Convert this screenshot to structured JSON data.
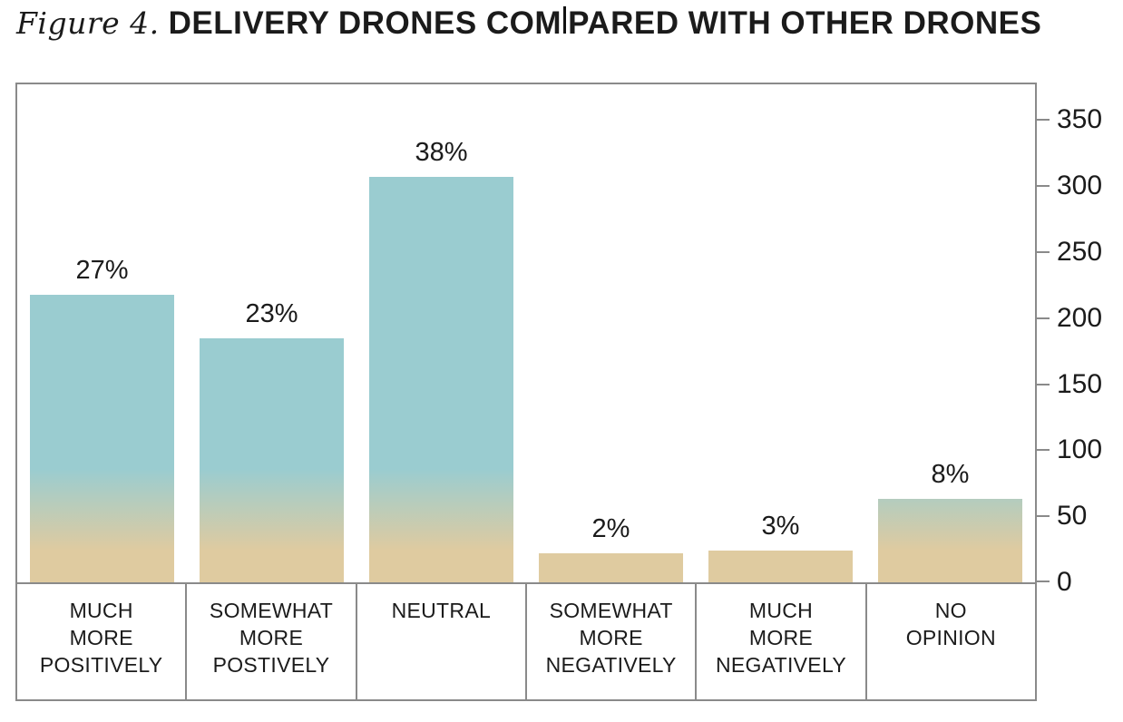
{
  "title": {
    "prefix": "Figure 4.",
    "main_before_caret": "DELIVERY DRONES COM",
    "main_after_caret": "PARED WITH OTHER DRONES",
    "full": "Figure 4. DELIVERY DRONES COMPARED WITH OTHER DRONES"
  },
  "chart_data": {
    "type": "bar",
    "title": "Figure 4. DELIVERY DRONES COMPARED WITH OTHER DRONES",
    "categories": [
      "MUCH MORE POSITIVELY",
      "SOMEWHAT MORE POSTIVELY",
      "NEUTRAL",
      "SOMEWHAT MORE NEGATIVELY",
      "MUCH MORE NEGATIVELY",
      "NO OPINION"
    ],
    "category_lines": [
      [
        "MUCH",
        "MORE",
        "POSITIVELY"
      ],
      [
        "SOMEWHAT",
        "MORE",
        "POSTIVELY"
      ],
      [
        "NEUTRAL"
      ],
      [
        "SOMEWHAT",
        "MORE",
        "NEGATIVELY"
      ],
      [
        "MUCH",
        "MORE",
        "NEGATIVELY"
      ],
      [
        "NO",
        "OPINION"
      ]
    ],
    "bar_labels": [
      "27%",
      "23%",
      "38%",
      "2%",
      "3%",
      "8%"
    ],
    "percent_values": [
      27,
      23,
      38,
      2,
      3,
      8
    ],
    "values_axis_units": [
      218,
      185,
      307,
      22,
      24,
      63
    ],
    "xlabel": "",
    "ylabel": "",
    "ylim": [
      0,
      350
    ],
    "yticks": [
      0,
      50,
      100,
      150,
      200,
      250,
      300,
      350
    ],
    "yaxis_side": "right",
    "grid": false,
    "legend": "none",
    "bar_gradient": {
      "top": "#9accd0",
      "bottom": "#dfcba0"
    }
  },
  "colors": {
    "axis_line": "#8a8a8a",
    "text": "#1b1b1b",
    "background": "#ffffff"
  }
}
